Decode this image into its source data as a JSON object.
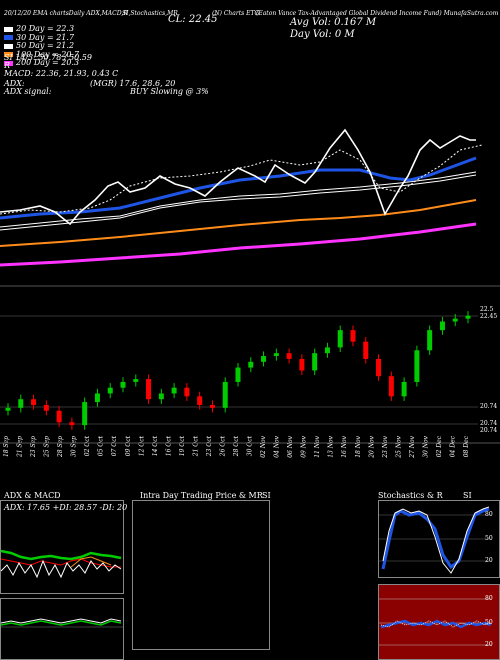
{
  "header": {
    "date_line": "20/12/20 EMA chartsDaily ADX,MACD,R",
    "studies_line": "SI,Stochastics,MR",
    "ticker_line": "(N) Charts ETG",
    "fund_line": "(Eaton  Vance  Tax-Advantaged Global Dividend Income  Fund) MunafaSutra.com",
    "close": "CL: 22.45",
    "avg_vol": "Avg Vol: 0.167 M",
    "day_vol": "Day Vol: 0   M"
  },
  "ma_legend": [
    {
      "label": "20  Day = 22.3",
      "color": "#ffffff"
    },
    {
      "label": "30  Day = 21.7",
      "color": "#1e55e6"
    },
    {
      "label": "50  Day = 21.2",
      "color": "#ffffff"
    },
    {
      "label": "100  Day = 20.7",
      "color": "#ff8c1a"
    },
    {
      "label": "200  Day = 20.3",
      "color": "#ff33ff"
    }
  ],
  "indicator_lines": [
    "SI 14/3: 50.78  /  50.59",
    "R",
    "MACD: 22.36, 21.93, 0.43 C"
  ],
  "adx_line": {
    "left": "ADX:",
    "right": "(MGR) 17.6,  28.6,  20"
  },
  "adx_signal": {
    "left": "ADX  signal:",
    "right": "BUY Slowing @ 3%"
  },
  "price_labels": {
    "top_a": "22.5",
    "top_b": "22.45",
    "low_a": "20.74",
    "low_b": "20.74",
    "low_c": "20.74"
  },
  "dates": [
    "18 Sep",
    "21 Sep",
    "23 Sep",
    "25 Sep",
    "28 Sep",
    "30 Sep",
    "02 Oct",
    "05 Oct",
    "07 Oct",
    "09 Oct",
    "12 Oct",
    "14 Oct",
    "16 Oct",
    "19 Oct",
    "21 Oct",
    "23 Oct",
    "26 Oct",
    "28 Oct",
    "30 Oct",
    "02 Nov",
    "04 Nov",
    "06 Nov",
    "09 Nov",
    "11 Nov",
    "13 Nov",
    "16 Nov",
    "18 Nov",
    "20 Nov",
    "23 Nov",
    "25 Nov",
    "27 Nov",
    "30 Nov",
    "02 Dec",
    "04 Dec",
    "08 Dec"
  ],
  "panels": {
    "adx_title": "ADX  & MACD",
    "adx_sub": "ADX: 17.65 +DI: 28.57 -DI: 20",
    "mr_title": "Intra  Day Trading Price  & MR",
    "mr_si": "SI",
    "stoch_title": "Stochastics & R",
    "stoch_si": "SI",
    "stoch_ticks": [
      "80",
      "50",
      "20"
    ],
    "rsi_ticks": [
      "80",
      "50",
      "20"
    ]
  },
  "colors": {
    "up": "#00cc00",
    "down": "#ff0000",
    "ma30": "#1e55e6",
    "ma100": "#ff8c1a",
    "ma200": "#ff33ff",
    "rsi_bg": "#8b0000",
    "stoch_line": "#1e55e6"
  },
  "chart_data": {
    "type": "candlestick",
    "price_axis_labels": [
      "22.5",
      "22.45",
      "20.74"
    ],
    "closes": [
      20.85,
      21.0,
      20.9,
      20.8,
      20.6,
      20.55,
      20.95,
      21.1,
      21.2,
      21.3,
      21.35,
      21.0,
      21.1,
      21.2,
      21.05,
      20.9,
      20.85,
      21.3,
      21.55,
      21.65,
      21.75,
      21.8,
      21.7,
      21.5,
      21.8,
      21.9,
      22.2,
      22.0,
      21.7,
      21.4,
      21.05,
      21.3,
      21.85,
      22.2,
      22.35,
      22.4,
      22.45
    ]
  }
}
